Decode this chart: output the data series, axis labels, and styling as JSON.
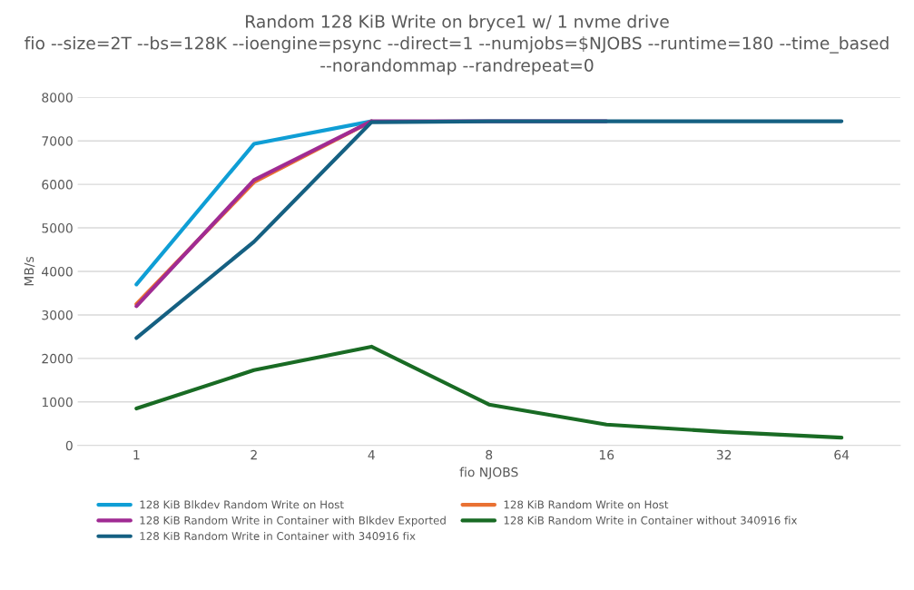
{
  "chart_data": {
    "type": "line",
    "title": "Random 128 KiB Write on bryce1 w/ 1 nvme drive",
    "subtitle": "fio --size=2T --bs=128K --ioengine=psync --direct=1 --numjobs=$NJOBS --runtime=180 --time_based --norandommap --randrepeat=0",
    "xlabel": "fio NJOBS",
    "ylabel": "MB/s",
    "categories": [
      "1",
      "2",
      "4",
      "8",
      "16",
      "32",
      "64"
    ],
    "series": [
      {
        "name": "128 KiB Blkdev Random Write on Host",
        "color": "#0f9ed5",
        "values": [
          3700,
          6930,
          7450,
          null,
          null,
          null,
          null
        ]
      },
      {
        "name": "128 KiB Random Write on Host",
        "color": "#e97132",
        "values": [
          3250,
          6050,
          7450,
          null,
          null,
          null,
          null
        ]
      },
      {
        "name": "128 KiB Random Write in Container with Blkdev Exported",
        "color": "#a02b93",
        "values": [
          3200,
          6100,
          7450,
          7450,
          7450,
          null,
          null
        ]
      },
      {
        "name": "128 KiB Random Write in Container without 340916 fix",
        "color": "#196b24",
        "values": [
          850,
          1730,
          2270,
          940,
          480,
          310,
          180
        ]
      },
      {
        "name": "128 KiB Random Write in Container with 340916 fix",
        "color": "#156082",
        "values": [
          2470,
          4680,
          7430,
          7450,
          7450,
          7450,
          7450
        ]
      }
    ],
    "ylim": [
      0,
      8000
    ],
    "yticks": [
      0,
      1000,
      2000,
      3000,
      4000,
      5000,
      6000,
      7000,
      8000
    ],
    "grid": "y",
    "legend": "bottom",
    "marker": "none",
    "line_style": "solid"
  }
}
